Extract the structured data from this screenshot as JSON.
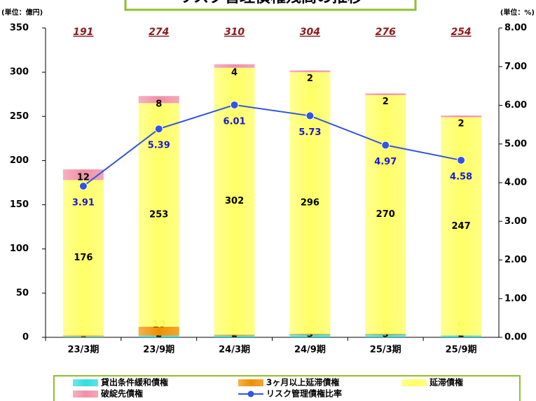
{
  "chart_data": {
    "type": "bar",
    "stacked": true,
    "title": "リスク管理債権残高の推移",
    "y_unit": "(単位：億円)",
    "y2_unit": "(単位：%)",
    "categories": [
      "23/3期",
      "23/9期",
      "24/3期",
      "24/9期",
      "25/3期",
      "25/9期"
    ],
    "series": [
      {
        "name": "貸出条件緩和債権",
        "color": "#33dddd",
        "values": [
          1,
          2,
          2,
          3,
          3,
          2
        ]
      },
      {
        "name": "3ヶ月以上延滞債権",
        "color": "#f09000",
        "values": [
          1,
          10,
          1,
          1,
          1,
          0
        ]
      },
      {
        "name": "延滞債権",
        "color": "#ffff66",
        "values": [
          176,
          253,
          302,
          296,
          270,
          247
        ]
      },
      {
        "name": "破綻先債権",
        "color": "#f090a8",
        "values": [
          12,
          8,
          4,
          2,
          2,
          2
        ]
      },
      {
        "name": "リスク管理債権比率",
        "color": "#3355dd",
        "type": "line",
        "axis": "y2",
        "values": [
          3.91,
          5.39,
          6.01,
          5.73,
          4.97,
          4.58
        ]
      }
    ],
    "totals": [
      191,
      274,
      310,
      304,
      276,
      254
    ],
    "ylim": [
      0,
      350
    ],
    "yticks": [
      0,
      50,
      100,
      150,
      200,
      250,
      300,
      350
    ],
    "y2lim": [
      0,
      8
    ],
    "y2ticks": [
      {
        "value": 0,
        "label": "0.00"
      },
      {
        "value": 1,
        "label": "1.00"
      },
      {
        "value": 2,
        "label": "2.00"
      },
      {
        "value": 3,
        "label": "3.00"
      },
      {
        "value": 4,
        "label": "4.00"
      },
      {
        "value": 5,
        "label": "5.00"
      },
      {
        "value": 6,
        "label": "6.00"
      },
      {
        "value": 7,
        "label": "7.00"
      },
      {
        "value": 8,
        "label": "8.00"
      }
    ]
  }
}
